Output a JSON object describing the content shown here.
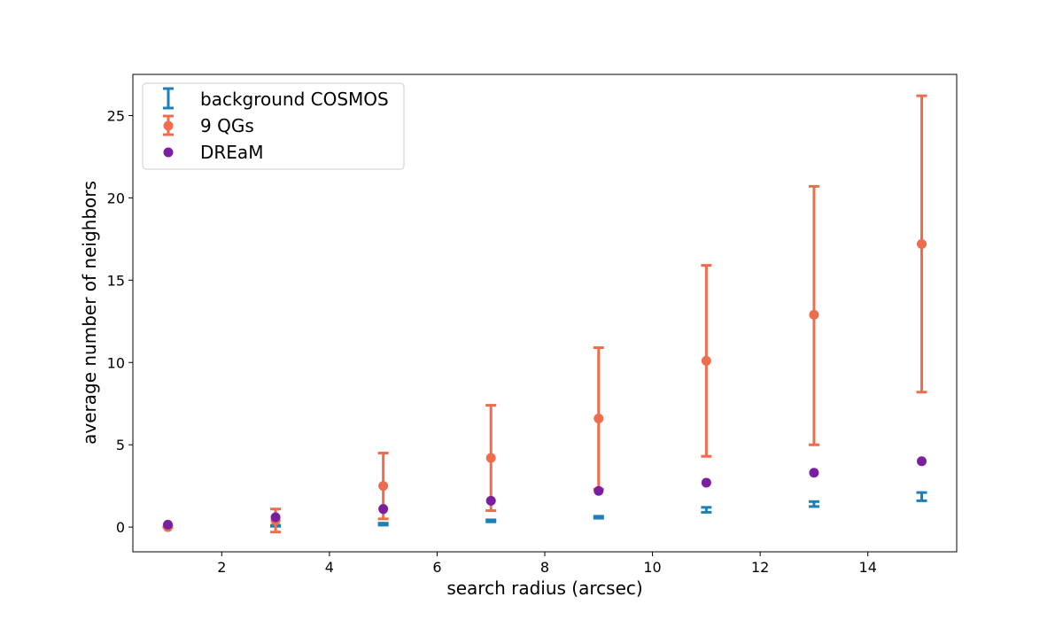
{
  "chart_data": {
    "type": "scatter",
    "title": "",
    "xlabel": "search radius (arcsec)",
    "ylabel": "average number of neighbors",
    "xlim": [
      0.35,
      15.65
    ],
    "ylim": [
      -1.5,
      27.5
    ],
    "xticks": [
      2,
      4,
      6,
      8,
      10,
      12,
      14
    ],
    "yticks": [
      0,
      5,
      10,
      15,
      20,
      25
    ],
    "grid": false,
    "legend_position": "top-left",
    "series": [
      {
        "name": "background COSMOS",
        "kind": "errorbar-only",
        "color": "#1f7fb8",
        "x": [
          1,
          3,
          5,
          7,
          9,
          11,
          13,
          15
        ],
        "y": [
          0.02,
          0.08,
          0.18,
          0.38,
          0.6,
          1.05,
          1.4,
          1.85
        ],
        "yerr_low": [
          0.01,
          0.03,
          0.06,
          0.06,
          0.06,
          0.15,
          0.15,
          0.25
        ],
        "yerr_high": [
          0.01,
          0.03,
          0.06,
          0.06,
          0.06,
          0.15,
          0.15,
          0.25
        ]
      },
      {
        "name": "9 QGs",
        "kind": "errorbar-marker",
        "color": "#ef6c4c",
        "x": [
          1,
          3,
          5,
          7,
          9,
          11,
          13,
          15
        ],
        "y": [
          0.0,
          0.4,
          2.5,
          4.2,
          6.6,
          10.1,
          12.9,
          17.2
        ],
        "yerr_low": [
          0.0,
          0.7,
          2.0,
          3.2,
          4.3,
          5.8,
          7.9,
          9.0
        ],
        "yerr_high": [
          0.0,
          0.7,
          2.0,
          3.2,
          4.3,
          5.8,
          7.8,
          9.0
        ]
      },
      {
        "name": "DREaM",
        "kind": "marker",
        "color": "#7a1fa0",
        "x": [
          1,
          3,
          5,
          7,
          9,
          11,
          13,
          15
        ],
        "y": [
          0.15,
          0.6,
          1.1,
          1.6,
          2.2,
          2.7,
          3.3,
          4.0
        ]
      }
    ]
  }
}
